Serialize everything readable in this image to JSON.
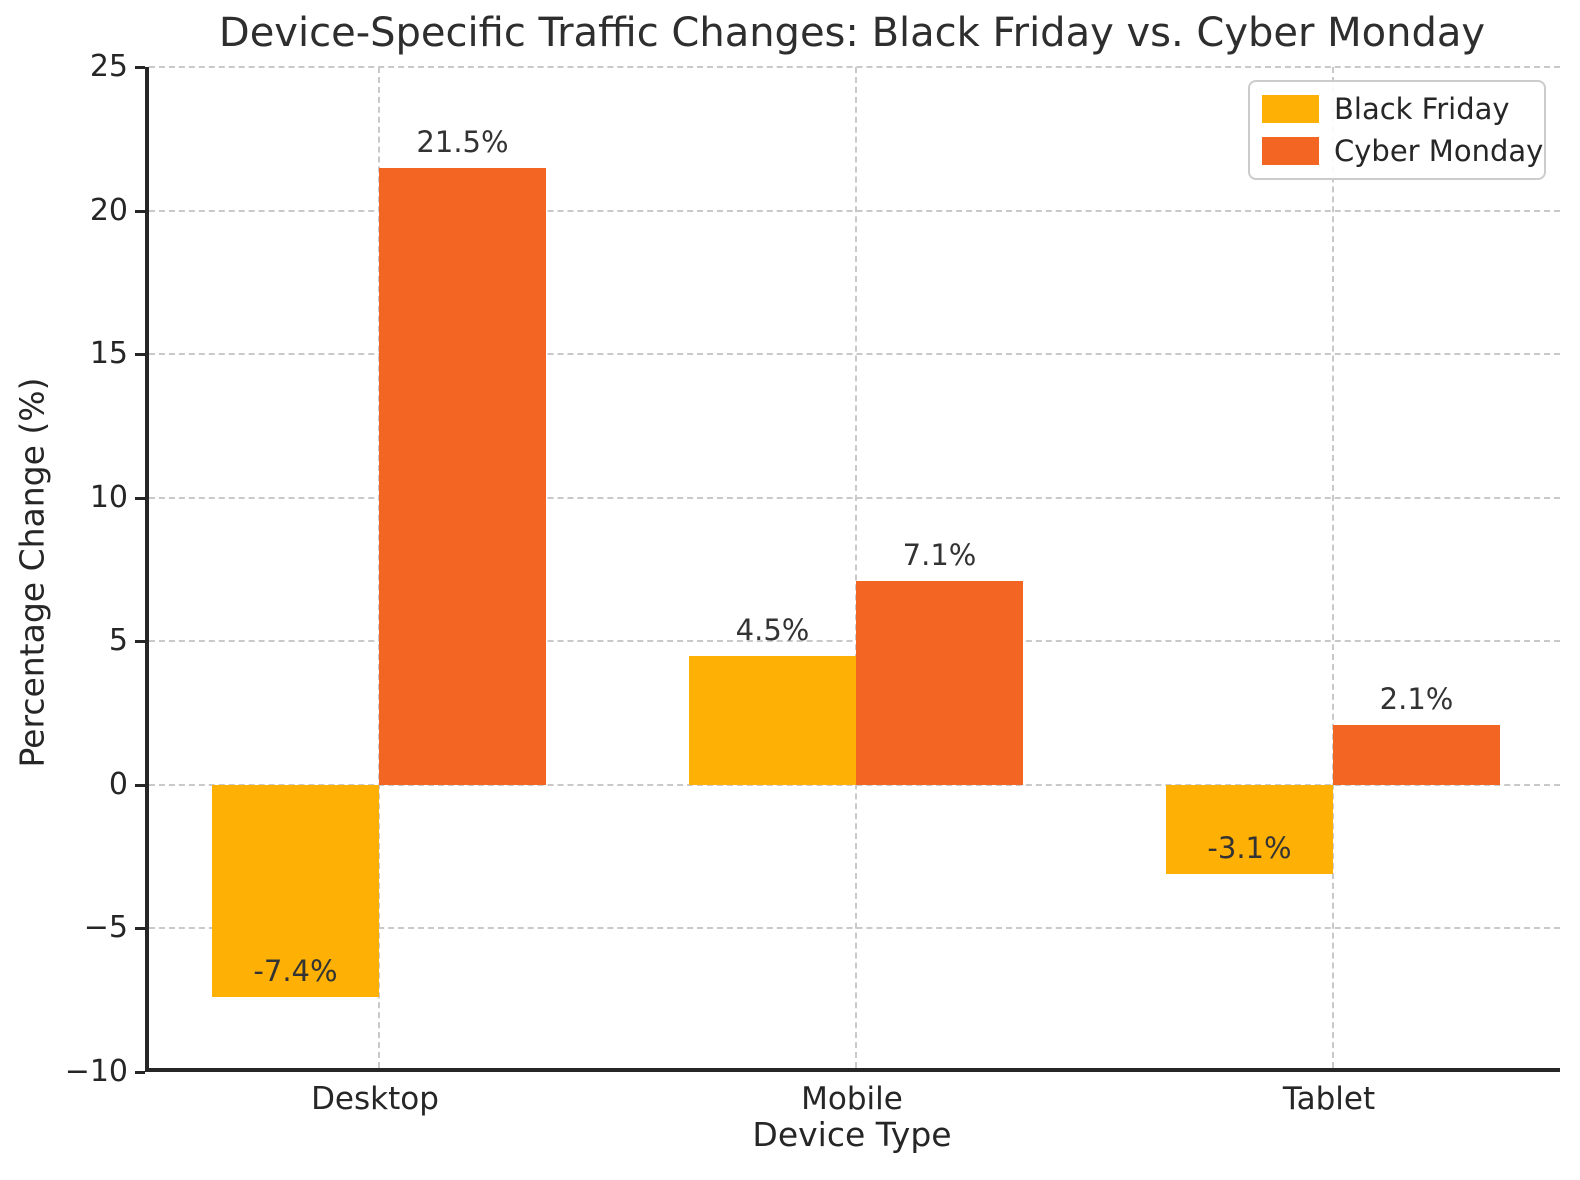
{
  "chart_data": {
    "type": "bar",
    "title": "Device-Specific Traffic Changes: Black Friday vs. Cyber Monday",
    "xlabel": "Device Type",
    "ylabel": "Percentage Change (%)",
    "categories": [
      "Desktop",
      "Mobile",
      "Tablet"
    ],
    "series": [
      {
        "name": "Black Friday",
        "color": "#FFB005",
        "values": [
          -7.4,
          4.5,
          -3.1
        ],
        "labels": [
          "-7.4%",
          "4.5%",
          "-3.1%"
        ]
      },
      {
        "name": "Cyber Monday",
        "color": "#F26522",
        "values": [
          21.5,
          7.1,
          2.1
        ],
        "labels": [
          "21.5%",
          "7.1%",
          "2.1%"
        ]
      }
    ],
    "ylim": [
      -10,
      25
    ],
    "yticks": [
      -10,
      -5,
      0,
      5,
      10,
      15,
      20,
      25
    ],
    "ytick_labels": [
      "−10",
      "−5",
      "0",
      "5",
      "10",
      "15",
      "20",
      "25"
    ],
    "grid": "dashed, horizontal and vertical",
    "legend_position": "upper right",
    "background": "#ffffff",
    "grid_color": "#c9c9c9",
    "spine_color": "#262626",
    "label_color": "#333333"
  }
}
